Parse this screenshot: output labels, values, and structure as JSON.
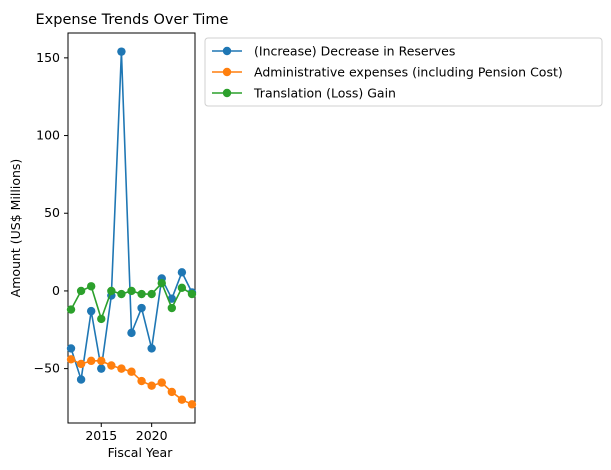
{
  "chart_data": {
    "type": "line",
    "title": "Expense Trends Over Time",
    "xlabel": "Fiscal Year",
    "ylabel": "Amount (US$ Millions)",
    "x": [
      2012,
      2013,
      2014,
      2015,
      2016,
      2017,
      2018,
      2019,
      2020,
      2021,
      2022,
      2023,
      2024
    ],
    "xlim": [
      2011.7,
      2024.3
    ],
    "ylim": [
      -85,
      166
    ],
    "xticks": [
      2015,
      2020
    ],
    "yticks": [
      -50,
      0,
      50,
      100,
      150
    ],
    "grid": false,
    "legend_position": "top-right outside plot",
    "series": [
      {
        "name": "(Increase) Decrease in Reserves",
        "color": "#1f77b4",
        "values": [
          -37,
          -57,
          -13,
          -50,
          -3,
          154,
          -27,
          -11,
          -37,
          8,
          -5,
          12,
          -1
        ]
      },
      {
        "name": "Administrative expenses (including Pension Cost)",
        "color": "#ff7f0e",
        "values": [
          -44,
          -47,
          -45,
          -45,
          -48,
          -50,
          -52,
          -58,
          -61,
          -59,
          -65,
          -70,
          -73
        ]
      },
      {
        "name": "Translation (Loss) Gain",
        "color": "#2ca02c",
        "values": [
          -12,
          0,
          3,
          -18,
          0,
          -2,
          0,
          -2,
          -2,
          5,
          -11,
          2,
          -2
        ]
      }
    ]
  }
}
